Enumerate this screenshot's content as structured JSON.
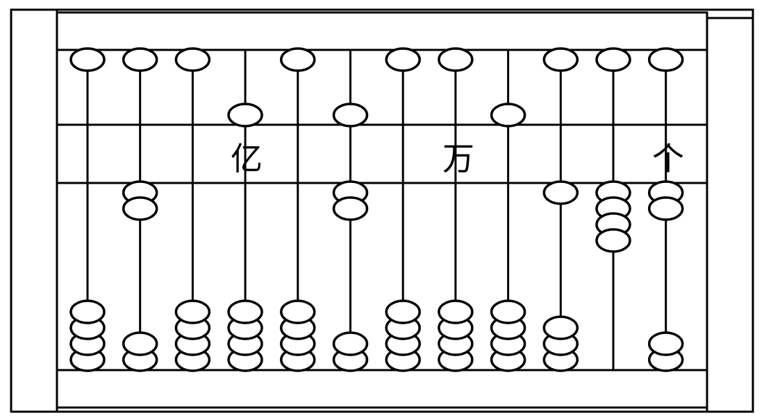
{
  "abacus": {
    "place_labels": [
      {
        "text": "亿",
        "rod": 4
      },
      {
        "text": "万",
        "rod": 8
      },
      {
        "text": "个",
        "rod": 12
      }
    ],
    "rods": [
      {
        "index": 1,
        "upper_beads_active": 0,
        "lower_beads_active": 0
      },
      {
        "index": 2,
        "upper_beads_active": 0,
        "lower_beads_active": 2
      },
      {
        "index": 3,
        "upper_beads_active": 0,
        "lower_beads_active": 0
      },
      {
        "index": 4,
        "upper_beads_active": 1,
        "lower_beads_active": 0
      },
      {
        "index": 5,
        "upper_beads_active": 0,
        "lower_beads_active": 0
      },
      {
        "index": 6,
        "upper_beads_active": 1,
        "lower_beads_active": 2
      },
      {
        "index": 7,
        "upper_beads_active": 0,
        "lower_beads_active": 0
      },
      {
        "index": 8,
        "upper_beads_active": 0,
        "lower_beads_active": 0
      },
      {
        "index": 9,
        "upper_beads_active": 1,
        "lower_beads_active": 0
      },
      {
        "index": 10,
        "upper_beads_active": 0,
        "lower_beads_active": 1
      },
      {
        "index": 11,
        "upper_beads_active": 0,
        "lower_beads_active": 4
      },
      {
        "index": 12,
        "upper_beads_active": 0,
        "lower_beads_active": 2
      }
    ],
    "beads_per_rod_lower": 4,
    "beads_per_rod_upper": 1,
    "colors": {
      "stroke": "#000000",
      "bead_fill": "#ffffff",
      "background": "#ffffff"
    }
  }
}
